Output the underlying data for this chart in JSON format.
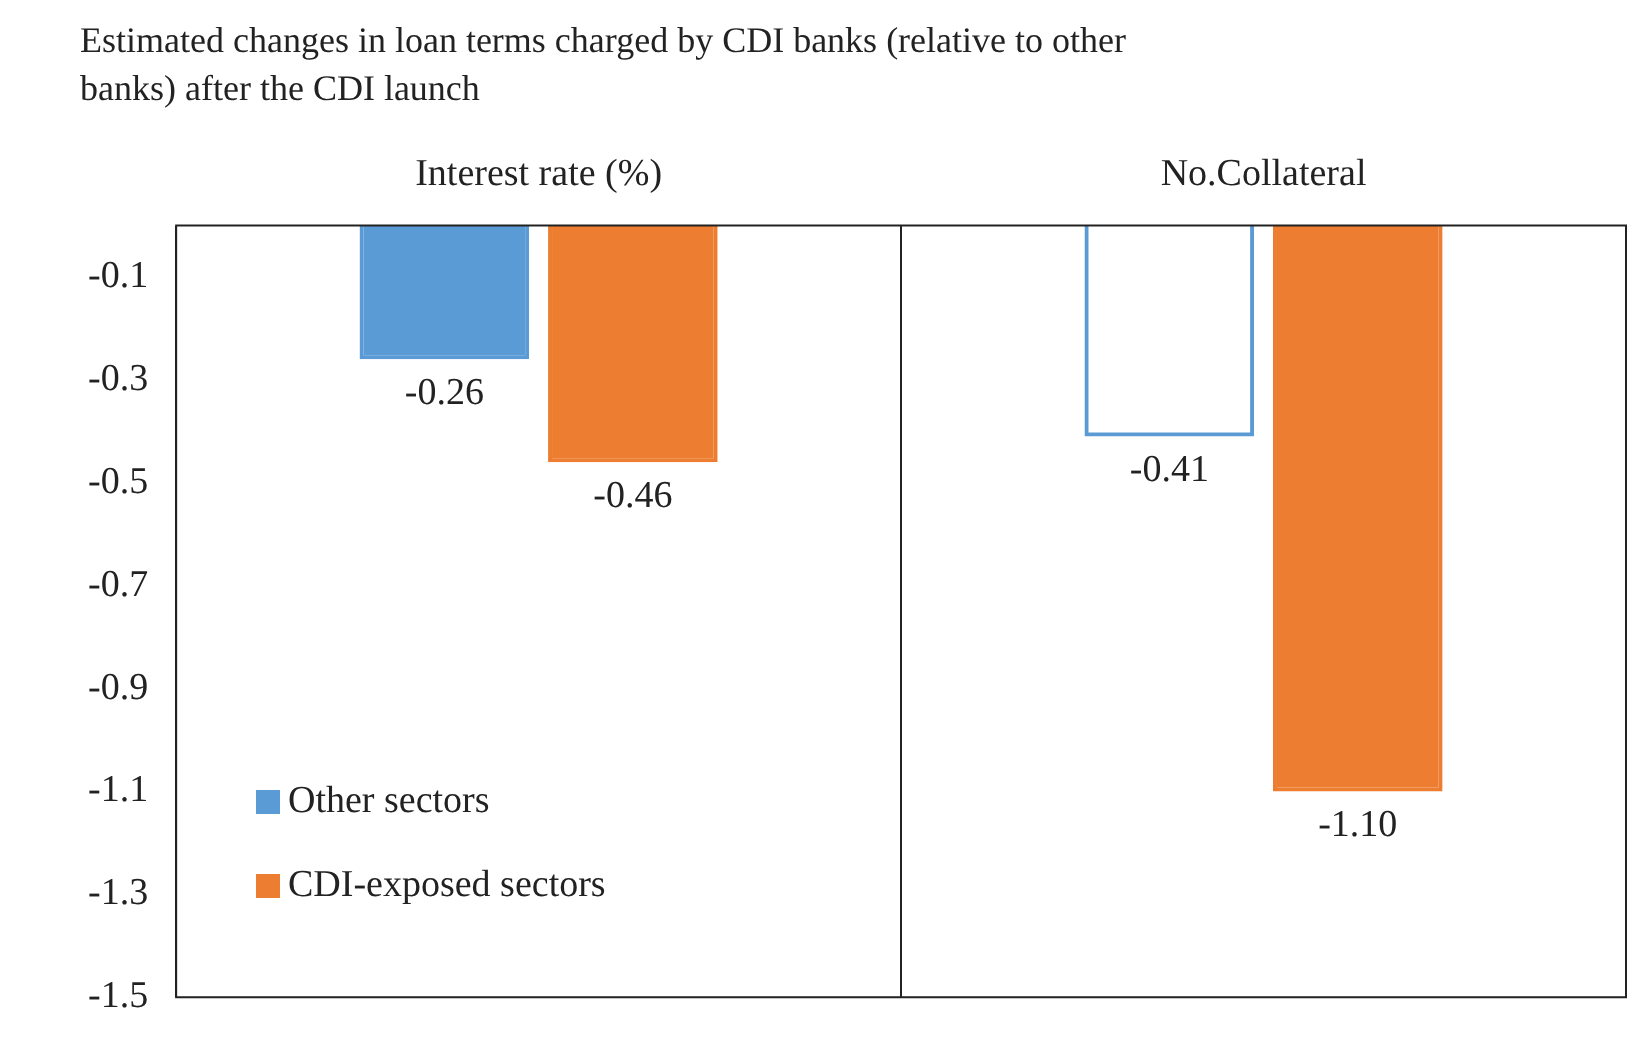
{
  "chart_data": {
    "type": "bar",
    "title": "Estimated changes in loan terms charged by CDI banks (relative to other banks) after the CDI launch",
    "categories": [
      "Interest rate (%)",
      "No.Collateral"
    ],
    "series": [
      {
        "name": "Other sectors",
        "color": "#5b9bd5",
        "colors": [
          "#5b9bd5",
          null
        ],
        "values": [
          -0.26,
          -0.41
        ],
        "value_labels": [
          "-0.26",
          "-0.41"
        ]
      },
      {
        "name": "CDI-exposed sectors",
        "color": "#ed7d31",
        "values": [
          -0.46,
          -1.1
        ],
        "value_labels": [
          "-0.46",
          "-1.10"
        ]
      }
    ],
    "ylim": [
      -1.5,
      0
    ],
    "yticks": [
      -0.1,
      -0.3,
      -0.5,
      -0.7,
      -0.9,
      -1.1,
      -1.3,
      -1.5
    ],
    "grid": "x",
    "legend": "bottom left"
  }
}
